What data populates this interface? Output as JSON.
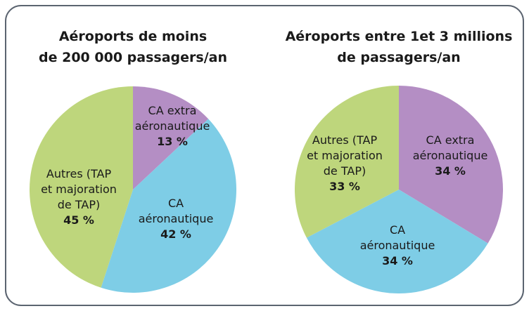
{
  "chart_data": [
    {
      "type": "pie",
      "title": "Aéroports de moins\nde 200 000 passagers/an",
      "categories": [
        "CA extra\naéronautique",
        "CA\naéronautique",
        "Autres (TAP\net majoration\nde TAP)"
      ],
      "values": [
        13,
        42,
        45
      ],
      "value_labels": [
        "13 %",
        "42 %",
        "45 %"
      ],
      "colors": [
        "#b48ec4",
        "#7ecde6",
        "#bed67c"
      ]
    },
    {
      "type": "pie",
      "title": "Aéroports entre 1et 3 millions\nde passagers/an",
      "categories": [
        "CA extra\naéronautique",
        "CA\naéronautique",
        "Autres (TAP\net majoration\nde TAP)"
      ],
      "values": [
        34,
        34,
        33
      ],
      "value_labels": [
        "34 %",
        "34 %",
        "33 %"
      ],
      "colors": [
        "#b48ec4",
        "#7ecde6",
        "#bed67c"
      ]
    }
  ]
}
